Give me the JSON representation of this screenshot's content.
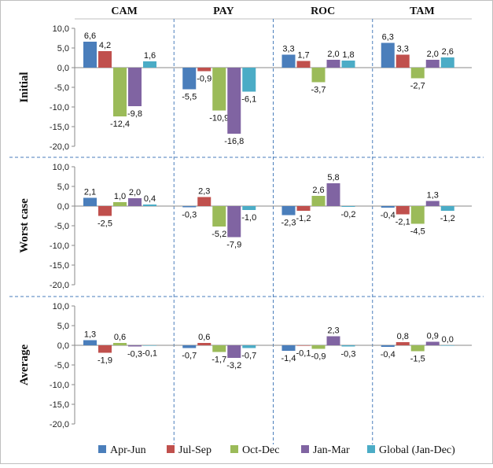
{
  "chart_data": {
    "type": "bar",
    "columns": [
      "CAM",
      "PAY",
      "ROC",
      "TAM"
    ],
    "rows": [
      "Initial",
      "Worst case",
      "Average"
    ],
    "y_ticks": [
      "10,0",
      "5,0",
      "0,0",
      "-5,0",
      "-10,0",
      "-15,0",
      "-20,0"
    ],
    "ylim": [
      -20,
      10
    ],
    "grid": false,
    "legend_position": "bottom",
    "series": [
      {
        "name": "Apr-Jun",
        "color": "#4a7ebb"
      },
      {
        "name": "Jul-Sep",
        "color": "#c0504d"
      },
      {
        "name": "Oct-Dec",
        "color": "#9bbb59"
      },
      {
        "name": "Jan-Mar",
        "color": "#8064a2"
      },
      {
        "name": "Global (Jan-Dec)",
        "color": "#4bacc6"
      }
    ],
    "panels": [
      {
        "row": "Initial",
        "column": "CAM",
        "values": [
          6.6,
          4.2,
          -12.4,
          -9.8,
          1.6
        ],
        "labels": [
          "6,6",
          "4,2",
          "-12,4",
          "-9,8",
          "1,6"
        ]
      },
      {
        "row": "Initial",
        "column": "PAY",
        "values": [
          -5.5,
          -0.9,
          -10.9,
          -16.8,
          -6.1
        ],
        "labels": [
          "-5,5",
          "-0,9",
          "-10,9",
          "-16,8",
          "-6,1"
        ]
      },
      {
        "row": "Initial",
        "column": "ROC",
        "values": [
          3.3,
          1.7,
          -3.7,
          2.0,
          1.8
        ],
        "labels": [
          "3,3",
          "1,7",
          "-3,7",
          "2,0",
          "1,8"
        ]
      },
      {
        "row": "Initial",
        "column": "TAM",
        "values": [
          6.3,
          3.3,
          -2.7,
          2.0,
          2.6
        ],
        "labels": [
          "6,3",
          "3,3",
          "-2,7",
          "2,0",
          "2,6"
        ]
      },
      {
        "row": "Worst case",
        "column": "CAM",
        "values": [
          2.1,
          -2.5,
          1.0,
          2.0,
          0.4
        ],
        "labels": [
          "2,1",
          "-2,5",
          "1,0",
          "2,0",
          "0,4"
        ]
      },
      {
        "row": "Worst case",
        "column": "PAY",
        "values": [
          -0.3,
          2.3,
          -5.2,
          -7.9,
          -1.0
        ],
        "labels": [
          "-0,3",
          "2,3",
          "-5,2",
          "-7,9",
          "-1,0"
        ]
      },
      {
        "row": "Worst case",
        "column": "ROC",
        "values": [
          -2.3,
          -1.2,
          2.6,
          5.8,
          -0.2
        ],
        "labels": [
          "-2,3",
          "-1,2",
          "2,6",
          "5,8",
          "-0,2"
        ]
      },
      {
        "row": "Worst case",
        "column": "TAM",
        "values": [
          -0.4,
          -2.1,
          -4.5,
          1.3,
          -1.2
        ],
        "labels": [
          "-0,4",
          "-2,1",
          "-4,5",
          "1,3",
          "-1,2"
        ]
      },
      {
        "row": "Average",
        "column": "CAM",
        "values": [
          1.3,
          -1.9,
          0.6,
          -0.3,
          -0.1
        ],
        "labels": [
          "1,3",
          "-1,9",
          "0,6",
          "-0,3",
          "-0,1"
        ]
      },
      {
        "row": "Average",
        "column": "PAY",
        "values": [
          -0.7,
          0.6,
          -1.7,
          -3.2,
          -0.7
        ],
        "labels": [
          "-0,7",
          "0,6",
          "-1,7",
          "-3,2",
          "-0,7"
        ]
      },
      {
        "row": "Average",
        "column": "ROC",
        "values": [
          -1.4,
          -0.1,
          -0.9,
          2.3,
          -0.3
        ],
        "labels": [
          "-1,4",
          "-0,1",
          "-0,9",
          "2,3",
          "-0,3"
        ]
      },
      {
        "row": "Average",
        "column": "TAM",
        "values": [
          -0.4,
          0.8,
          -1.5,
          0.9,
          0.0
        ],
        "labels": [
          "-0,4",
          "0,8",
          "-1,5",
          "0,9",
          "0,0"
        ]
      }
    ]
  }
}
